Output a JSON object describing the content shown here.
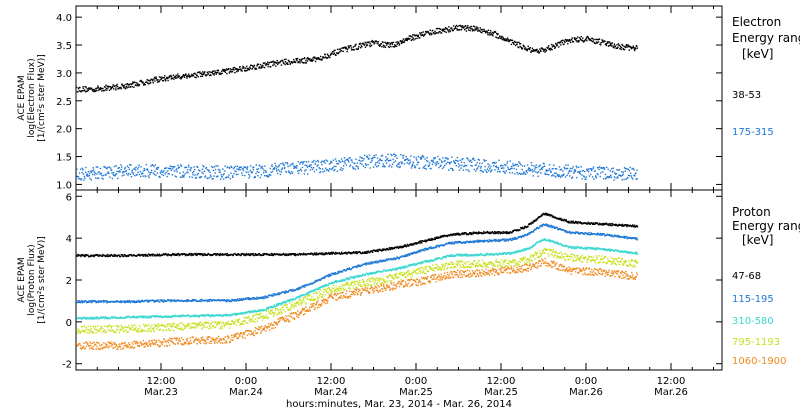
{
  "chart_data": [
    {
      "type": "scatter",
      "panel": "electron",
      "ylabel_lines": [
        "ACE EPAM",
        "log(Electron Flux)",
        "[1/(cm²s ster MeV)]"
      ],
      "ylim": [
        0.9,
        4.2
      ],
      "yticks": [
        "1.0",
        "1.5",
        "2.0",
        "2.5",
        "3.0",
        "3.5",
        "4.0"
      ],
      "legend_title": [
        "Electron",
        "Energy ranges",
        "[keV]"
      ],
      "series": [
        {
          "name": "38-53",
          "color": "#000000",
          "x": [
            0,
            0.1,
            0.3,
            0.45,
            0.6,
            0.8,
            1.0,
            1.2,
            1.4,
            1.6,
            1.75,
            1.85,
            1.95,
            2.05,
            2.15,
            2.25,
            2.35,
            2.45,
            2.55,
            2.7,
            2.8,
            2.9,
            3.0,
            3.1,
            3.2,
            3.3
          ],
          "y": [
            2.72,
            2.72,
            2.78,
            2.88,
            2.95,
            3.0,
            3.1,
            3.2,
            3.25,
            3.45,
            3.55,
            3.5,
            3.62,
            3.72,
            3.78,
            3.82,
            3.8,
            3.72,
            3.58,
            3.38,
            3.48,
            3.6,
            3.62,
            3.55,
            3.48,
            3.45
          ]
        },
        {
          "name": "175-315",
          "color": "#1f78d4",
          "x": [
            0,
            0.3,
            0.6,
            0.9,
            1.2,
            1.5,
            1.8,
            2.1,
            2.4,
            2.7,
            3.0,
            3.3
          ],
          "y": [
            1.2,
            1.25,
            1.25,
            1.22,
            1.28,
            1.35,
            1.45,
            1.4,
            1.35,
            1.28,
            1.22,
            1.2
          ]
        }
      ]
    },
    {
      "type": "scatter",
      "panel": "proton",
      "ylabel_lines": [
        "ACE EPAM",
        "log(Proton Flux)",
        "[1/(cm²s ster MeV)]"
      ],
      "ylim": [
        -2.3,
        6.3
      ],
      "yticks": [
        "-2",
        "0",
        "2",
        "4",
        "6"
      ],
      "legend_title": [
        "Proton",
        "Energy ranges",
        "[keV]"
      ],
      "series": [
        {
          "name": "47-68",
          "color": "#000000",
          "x": [
            0,
            0.3,
            0.6,
            0.9,
            1.1,
            1.3,
            1.5,
            1.7,
            1.9,
            2.05,
            2.2,
            2.4,
            2.55,
            2.65,
            2.75,
            2.9,
            3.1,
            3.3
          ],
          "y": [
            3.2,
            3.2,
            3.25,
            3.25,
            3.25,
            3.25,
            3.3,
            3.35,
            3.6,
            3.9,
            4.2,
            4.3,
            4.3,
            4.6,
            5.2,
            4.8,
            4.7,
            4.6
          ]
        },
        {
          "name": "115-195",
          "color": "#1f78d4",
          "x": [
            0,
            0.3,
            0.6,
            0.9,
            1.1,
            1.3,
            1.5,
            1.7,
            1.9,
            2.05,
            2.2,
            2.4,
            2.55,
            2.65,
            2.75,
            2.9,
            3.1,
            3.3
          ],
          "y": [
            1.0,
            1.0,
            1.05,
            1.05,
            1.2,
            1.6,
            2.3,
            2.8,
            3.1,
            3.5,
            3.8,
            3.9,
            3.95,
            4.2,
            4.7,
            4.3,
            4.2,
            4.0
          ]
        },
        {
          "name": "310-580",
          "color": "#3ad7d0",
          "x": [
            0,
            0.3,
            0.6,
            0.9,
            1.1,
            1.3,
            1.5,
            1.7,
            1.9,
            2.05,
            2.2,
            2.4,
            2.55,
            2.65,
            2.75,
            2.9,
            3.1,
            3.3
          ],
          "y": [
            0.2,
            0.25,
            0.3,
            0.35,
            0.6,
            1.2,
            1.9,
            2.3,
            2.6,
            2.9,
            3.2,
            3.25,
            3.3,
            3.5,
            4.0,
            3.6,
            3.5,
            3.3
          ]
        },
        {
          "name": "795-1193",
          "color": "#c8e020",
          "x": [
            0,
            0.3,
            0.6,
            0.9,
            1.1,
            1.3,
            1.5,
            1.7,
            1.9,
            2.05,
            2.2,
            2.4,
            2.55,
            2.65,
            2.75,
            2.9,
            3.1,
            3.3
          ],
          "y": [
            -0.35,
            -0.3,
            -0.2,
            -0.1,
            0.3,
            0.9,
            1.6,
            1.9,
            2.2,
            2.5,
            2.75,
            2.8,
            2.85,
            3.0,
            3.4,
            3.1,
            3.0,
            2.8
          ]
        },
        {
          "name": "1060-1900",
          "color": "#f08a20",
          "x": [
            0,
            0.3,
            0.6,
            0.9,
            1.1,
            1.3,
            1.5,
            1.7,
            1.9,
            2.05,
            2.2,
            2.4,
            2.55,
            2.65,
            2.75,
            2.9,
            3.1,
            3.3
          ],
          "y": [
            -1.1,
            -1.1,
            -0.9,
            -0.8,
            -0.3,
            0.4,
            1.2,
            1.5,
            1.8,
            2.0,
            2.3,
            2.4,
            2.5,
            2.6,
            2.9,
            2.5,
            2.4,
            2.2
          ]
        }
      ]
    }
  ],
  "x_axis": {
    "xlim": [
      0,
      3.8
    ],
    "ticks": [
      {
        "x": 0.5,
        "time": "12:00",
        "date": "Mar.23"
      },
      {
        "x": 1.0,
        "time": "0:00",
        "date": "Mar.24"
      },
      {
        "x": 1.5,
        "time": "12:00",
        "date": "Mar.24"
      },
      {
        "x": 2.0,
        "time": "0:00",
        "date": "Mar.25"
      },
      {
        "x": 2.5,
        "time": "12:00",
        "date": "Mar.25"
      },
      {
        "x": 3.0,
        "time": "0:00",
        "date": "Mar.26"
      },
      {
        "x": 3.5,
        "time": "12:00",
        "date": "Mar.26"
      }
    ],
    "label": "hours:minutes, Mar. 23, 2014 - Mar. 26, 2014"
  }
}
